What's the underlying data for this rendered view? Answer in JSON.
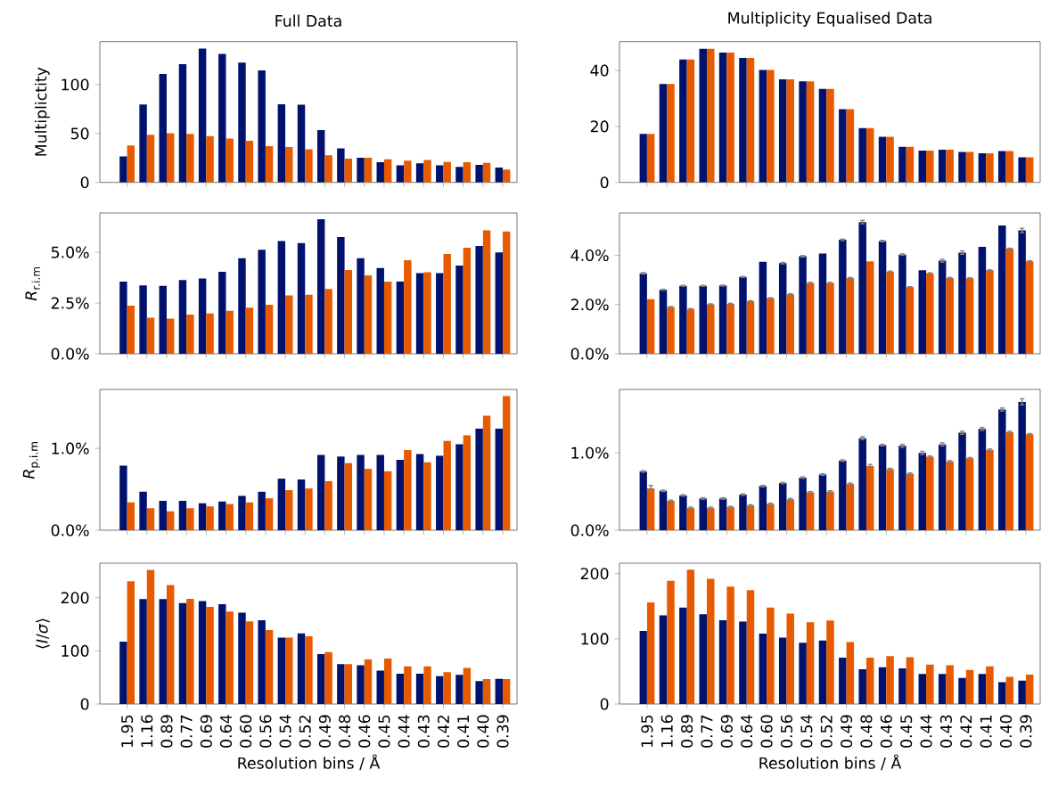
{
  "chart_data": [
    {
      "type": "bar",
      "title": "Full Data",
      "ylabel": "Multiplictity",
      "tick_labels": "y",
      "categories": [
        "1.95",
        "1.16",
        "0.89",
        "0.77",
        "0.69",
        "0.64",
        "0.60",
        "0.56",
        "0.54",
        "0.52",
        "0.49",
        "0.48",
        "0.46",
        "0.45",
        "0.44",
        "0.43",
        "0.42",
        "0.41",
        "0.40",
        "0.39"
      ],
      "series": [
        {
          "color": "#00126e",
          "values": [
            26.7,
            79.7,
            110.8,
            121,
            136.8,
            131.4,
            122.6,
            114.5,
            80,
            79.4,
            53.4,
            34.8,
            25.3,
            20.6,
            17.6,
            19.6,
            17.6,
            15.9,
            17.9,
            15.2
          ]
        },
        {
          "color": "#e85a00",
          "values": [
            37.8,
            48.6,
            50.3,
            49.7,
            47.3,
            44.9,
            42.6,
            37.2,
            36.1,
            33.8,
            27.7,
            24.3,
            25.3,
            23.6,
            22.3,
            23,
            20.9,
            20.6,
            19.9,
            13.2
          ]
        }
      ],
      "ylim": [
        0,
        144
      ],
      "yticks": [
        0,
        50,
        100
      ]
    },
    {
      "type": "bar",
      "title": "Multiplicity Equalised Data",
      "tick_labels": "y",
      "categories": [
        "1.95",
        "1.16",
        "0.89",
        "0.77",
        "0.69",
        "0.64",
        "0.60",
        "0.56",
        "0.54",
        "0.52",
        "0.49",
        "0.48",
        "0.46",
        "0.45",
        "0.44",
        "0.43",
        "0.42",
        "0.41",
        "0.40",
        "0.39"
      ],
      "series": [
        {
          "color": "#00126e",
          "values": [
            17.3,
            35.2,
            43.9,
            47.7,
            46.4,
            44.5,
            40.2,
            36.8,
            36.1,
            33.4,
            26.2,
            19.4,
            16.3,
            12.7,
            11.4,
            11.7,
            10.9,
            10.4,
            11.2,
            9.0
          ]
        },
        {
          "color": "#e85a00",
          "values": [
            17.3,
            35.2,
            43.9,
            47.7,
            46.4,
            44.5,
            40.2,
            36.8,
            36.1,
            33.4,
            26.2,
            19.4,
            16.3,
            12.7,
            11.4,
            11.7,
            10.9,
            10.4,
            11.2,
            9.0
          ]
        }
      ],
      "ylim": [
        0,
        50.3
      ],
      "yticks": [
        0,
        20,
        40
      ]
    },
    {
      "type": "bar",
      "ylabel": "*R*$_{r.i.m}$",
      "tick_labels": "y",
      "categories": [
        "1.95",
        "1.16",
        "0.89",
        "0.77",
        "0.69",
        "0.64",
        "0.60",
        "0.56",
        "0.54",
        "0.52",
        "0.49",
        "0.48",
        "0.46",
        "0.45",
        "0.44",
        "0.43",
        "0.42",
        "0.41",
        "0.40",
        "0.39"
      ],
      "series": [
        {
          "color": "#00126e",
          "values": [
            3.56,
            3.37,
            3.35,
            3.63,
            3.71,
            4.04,
            4.71,
            5.13,
            5.56,
            5.46,
            6.63,
            5.75,
            4.71,
            4.23,
            3.56,
            3.97,
            3.97,
            4.35,
            5.31,
            5.0
          ]
        },
        {
          "color": "#e85a00",
          "values": [
            2.37,
            1.78,
            1.73,
            1.93,
            1.99,
            2.12,
            2.27,
            2.42,
            2.88,
            2.91,
            3.19,
            4.13,
            3.86,
            3.56,
            4.61,
            4.02,
            4.92,
            5.23,
            6.09,
            6.03
          ]
        }
      ],
      "ylim": [
        0,
        6.94
      ],
      "yticks": [
        {
          "value": 0,
          "label": "0.0%"
        },
        {
          "value": 2.5,
          "label": "2.5%"
        },
        {
          "value": 5,
          "label": "5.0%"
        }
      ]
    },
    {
      "type": "bar",
      "tick_labels": "y",
      "categories": [
        "1.95",
        "1.16",
        "0.89",
        "0.77",
        "0.69",
        "0.64",
        "0.60",
        "0.56",
        "0.54",
        "0.52",
        "0.49",
        "0.48",
        "0.46",
        "0.45",
        "0.44",
        "0.43",
        "0.42",
        "0.41",
        "0.40",
        "0.39"
      ],
      "series": [
        {
          "color": "#00126e",
          "values": [
            3.27,
            2.6,
            2.76,
            2.76,
            2.77,
            3.12,
            3.74,
            3.68,
            3.96,
            4.07,
            4.63,
            5.35,
            4.58,
            4.03,
            3.39,
            3.78,
            4.11,
            4.34,
            5.21,
            5.01
          ],
          "errors": [
            0.03,
            0.02,
            0.02,
            0.02,
            0.02,
            0.02,
            null,
            0.03,
            0.03,
            null,
            0.03,
            0.07,
            0.03,
            0.03,
            null,
            0.06,
            0.07,
            null,
            null,
            0.09
          ]
        },
        {
          "color": "#e85a00",
          "values": [
            2.22,
            1.9,
            1.82,
            2.01,
            2.03,
            2.14,
            2.26,
            2.42,
            2.88,
            2.88,
            3.08,
            3.76,
            3.34,
            2.71,
            3.27,
            3.08,
            3.07,
            3.39,
            4.27,
            3.76
          ],
          "errors": [
            null,
            0.02,
            0.02,
            0.02,
            0.02,
            0.02,
            0.02,
            0.02,
            0.02,
            0.02,
            0.02,
            null,
            0.02,
            0.02,
            0.02,
            0.02,
            0.02,
            0.02,
            0.02,
            0.02
          ]
        }
      ],
      "ylim": [
        0,
        5.72
      ],
      "yticks": [
        {
          "value": 0,
          "label": "0.0%"
        },
        {
          "value": 2,
          "label": "2.0%"
        },
        {
          "value": 4,
          "label": "4.0%"
        }
      ]
    },
    {
      "type": "bar",
      "ylabel": "*R*$_{p.i.m}$",
      "tick_labels": "y",
      "categories": [
        "1.95",
        "1.16",
        "0.89",
        "0.77",
        "0.69",
        "0.64",
        "0.60",
        "0.56",
        "0.54",
        "0.52",
        "0.49",
        "0.48",
        "0.46",
        "0.45",
        "0.44",
        "0.43",
        "0.42",
        "0.41",
        "0.40",
        "0.39"
      ],
      "series": [
        {
          "color": "#00126e",
          "values": [
            0.79,
            0.47,
            0.36,
            0.36,
            0.33,
            0.35,
            0.42,
            0.47,
            0.63,
            0.62,
            0.92,
            0.9,
            0.92,
            0.92,
            0.86,
            0.93,
            0.91,
            1.05,
            1.24,
            1.24
          ]
        },
        {
          "color": "#e85a00",
          "values": [
            0.34,
            0.27,
            0.23,
            0.27,
            0.29,
            0.32,
            0.34,
            0.39,
            0.49,
            0.51,
            0.6,
            0.82,
            0.75,
            0.72,
            0.98,
            0.83,
            1.09,
            1.16,
            1.4,
            1.64
          ]
        }
      ],
      "ylim": [
        0,
        1.72
      ],
      "yticks": [
        {
          "value": 0,
          "label": "0.0%"
        },
        {
          "value": 1,
          "label": "1.0%"
        }
      ]
    },
    {
      "type": "bar",
      "tick_labels": "y",
      "categories": [
        "1.95",
        "1.16",
        "0.89",
        "0.77",
        "0.69",
        "0.64",
        "0.60",
        "0.56",
        "0.54",
        "0.52",
        "0.49",
        "0.48",
        "0.46",
        "0.45",
        "0.44",
        "0.43",
        "0.42",
        "0.41",
        "0.40",
        "0.39"
      ],
      "series": [
        {
          "color": "#00126e",
          "values": [
            0.76,
            0.51,
            0.45,
            0.41,
            0.41,
            0.46,
            0.57,
            0.61,
            0.68,
            0.72,
            0.9,
            1.19,
            1.1,
            1.09,
            1.0,
            1.11,
            1.26,
            1.31,
            1.56,
            1.66
          ],
          "errors": [
            0.01,
            0.01,
            0.01,
            0.01,
            0.01,
            0.01,
            0.01,
            0.01,
            0.01,
            0.01,
            0.01,
            0.02,
            0.01,
            0.02,
            0.02,
            0.02,
            0.02,
            0.02,
            0.02,
            0.04
          ]
        },
        {
          "color": "#e85a00",
          "values": [
            0.54,
            0.38,
            0.29,
            0.29,
            0.3,
            0.32,
            0.34,
            0.4,
            0.49,
            0.5,
            0.6,
            0.83,
            0.79,
            0.73,
            0.95,
            0.89,
            0.93,
            1.04,
            1.27,
            1.24
          ],
          "errors": [
            0.04,
            0.01,
            0.01,
            0.01,
            0.01,
            0.01,
            0.01,
            0.01,
            0.01,
            0.01,
            0.01,
            0.02,
            0.01,
            0.01,
            0.01,
            0.01,
            0.01,
            0.01,
            0.01,
            0.01
          ]
        }
      ],
      "ylim": [
        0,
        1.82
      ],
      "yticks": [
        {
          "value": 0,
          "label": "0.0%"
        },
        {
          "value": 1,
          "label": "1.0%"
        }
      ]
    },
    {
      "type": "bar",
      "ylabel": "⟨*I*/*σ*⟩",
      "xlabel": "Resolution bins / Å",
      "categories": [
        "1.95",
        "1.16",
        "0.89",
        "0.77",
        "0.69",
        "0.64",
        "0.60",
        "0.56",
        "0.54",
        "0.52",
        "0.49",
        "0.48",
        "0.46",
        "0.45",
        "0.44",
        "0.43",
        "0.42",
        "0.41",
        "0.40",
        "0.39"
      ],
      "series": [
        {
          "color": "#00126e",
          "values": [
            117.5,
            197.5,
            197.5,
            190,
            193.8,
            188,
            172,
            157.5,
            125,
            133,
            93.8,
            75,
            73,
            63,
            57,
            57,
            52.5,
            55,
            43,
            47.5
          ]
        },
        {
          "color": "#e85a00",
          "values": [
            231,
            252.5,
            224,
            198,
            183,
            174,
            155.6,
            139,
            125,
            127.5,
            97.5,
            75,
            84,
            85.6,
            71,
            71,
            60,
            68,
            47,
            47
          ]
        }
      ],
      "ylim": [
        0,
        265
      ],
      "yticks": [
        0,
        100,
        200
      ]
    },
    {
      "type": "bar",
      "xlabel": "Resolution bins / Å",
      "categories": [
        "1.95",
        "1.16",
        "0.89",
        "0.77",
        "0.69",
        "0.64",
        "0.60",
        "0.56",
        "0.54",
        "0.52",
        "0.49",
        "0.48",
        "0.46",
        "0.45",
        "0.44",
        "0.43",
        "0.42",
        "0.41",
        "0.40",
        "0.39"
      ],
      "series": [
        {
          "color": "#00126e",
          "values": [
            112,
            136,
            148,
            137.6,
            128.4,
            126.4,
            108,
            102,
            94,
            97.5,
            71,
            53.3,
            56.3,
            54.8,
            46.2,
            46.2,
            40,
            46.2,
            33.5,
            36
          ]
        },
        {
          "color": "#e85a00",
          "values": [
            156,
            189,
            206,
            192,
            180,
            174.6,
            148,
            138.6,
            125.4,
            128,
            95,
            71,
            73.6,
            71.6,
            60.4,
            59.4,
            52.3,
            57.9,
            41.6,
            45.2
          ]
        }
      ],
      "ylim": [
        0,
        216
      ],
      "yticks": [
        0,
        100,
        200
      ]
    }
  ]
}
